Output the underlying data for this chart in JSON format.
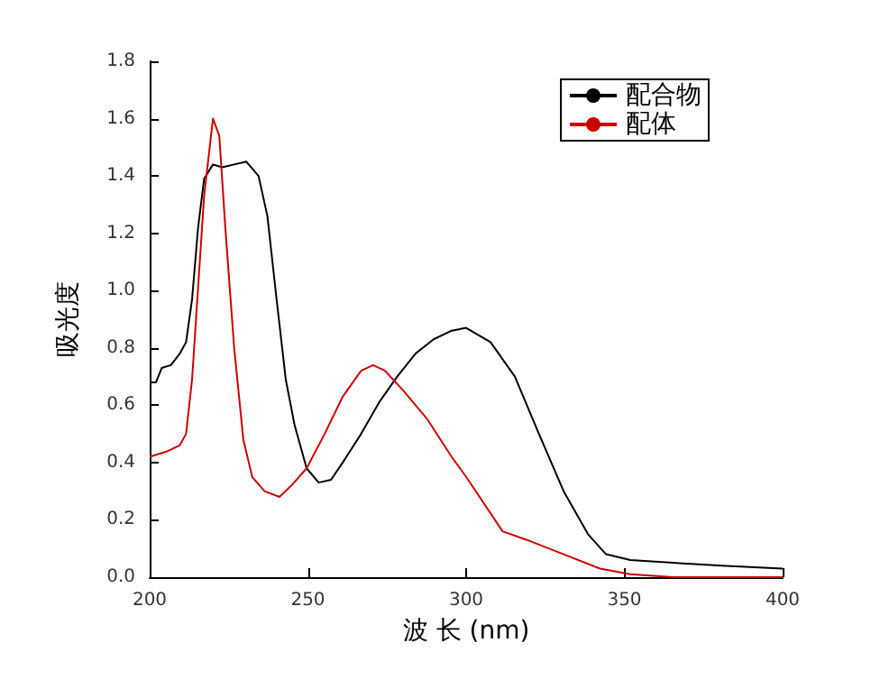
{
  "chart_data": {
    "type": "line",
    "xlabel": "波 长 (nm)",
    "ylabel": "吸光度",
    "xlim": [
      200,
      400
    ],
    "xticks": [
      200,
      250,
      300,
      350,
      400
    ],
    "ylim": [
      0,
      1.8
    ],
    "yticks": [
      {
        "value": 0,
        "label": "0.0"
      },
      {
        "value": 0.2,
        "label": "0.2"
      },
      {
        "value": 0.4,
        "label": "0.4"
      },
      {
        "value": 0.6,
        "label": "0.6"
      },
      {
        "value": 0.8,
        "label": "0.8"
      },
      {
        "value": 1,
        "label": "1.0"
      },
      {
        "value": 1.2,
        "label": "1.2"
      },
      {
        "value": 1.4,
        "label": "1.4"
      },
      {
        "value": 1.6,
        "label": "1.6"
      },
      {
        "value": 1.8,
        "label": "1.8"
      }
    ],
    "grid": false,
    "legend": "top right",
    "marker": "none",
    "line_style": "solid",
    "series": [
      {
        "name": "配合物",
        "color": "#000000",
        "x": [
          200,
          202,
          203.8,
          206.7,
          209.5,
          211.5,
          213.4,
          215.3,
          217.2,
          220,
          222.9,
          226.7,
          230.5,
          234.4,
          237.2,
          240.1,
          243,
          245.8,
          249.6,
          253.4,
          257.3,
          261,
          266.8,
          272.5,
          278.2,
          284,
          289.7,
          295.4,
          300,
          307.7,
          315.4,
          323,
          330.8,
          338.5,
          344.2,
          351.9,
          365.4,
          380.8,
          400
        ],
        "values": [
          0.68,
          0.68,
          0.73,
          0.74,
          0.78,
          0.82,
          0.97,
          1.22,
          1.39,
          1.44,
          1.43,
          1.44,
          1.45,
          1.4,
          1.26,
          0.97,
          0.69,
          0.53,
          0.38,
          0.33,
          0.34,
          0.4,
          0.5,
          0.61,
          0.7,
          0.78,
          0.83,
          0.86,
          0.87,
          0.82,
          0.7,
          0.5,
          0.3,
          0.15,
          0.08,
          0.06,
          0.05,
          0.04,
          0.03
        ]
      },
      {
        "name": "配体",
        "color": "#cc0000",
        "x": [
          200,
          205.7,
          209.5,
          211.5,
          213.4,
          215.3,
          217.2,
          220,
          222,
          223.9,
          226.7,
          229.6,
          232.4,
          236.3,
          241,
          244.8,
          249.6,
          255.3,
          261,
          266.8,
          270.6,
          274.4,
          280.2,
          287.8,
          295.4,
          300,
          311.5,
          319.2,
          330.8,
          342.3,
          351.9,
          365.4,
          400
        ],
        "values": [
          0.42,
          0.44,
          0.46,
          0.5,
          0.69,
          1.01,
          1.33,
          1.6,
          1.54,
          1.22,
          0.8,
          0.48,
          0.35,
          0.3,
          0.28,
          0.32,
          0.38,
          0.5,
          0.63,
          0.72,
          0.74,
          0.72,
          0.65,
          0.55,
          0.42,
          0.35,
          0.16,
          0.13,
          0.08,
          0.03,
          0.01,
          0,
          0
        ]
      }
    ]
  }
}
